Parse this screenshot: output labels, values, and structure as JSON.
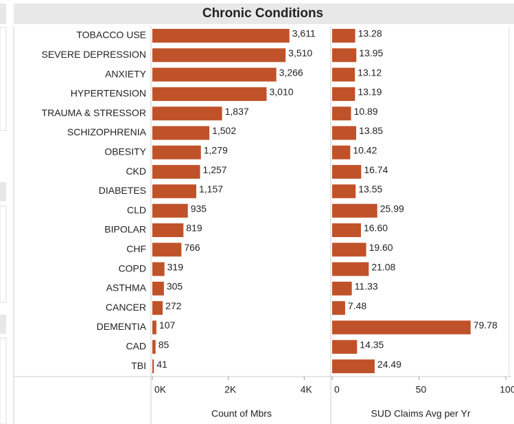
{
  "title": "Chronic Conditions",
  "chart_data": [
    {
      "type": "hbar",
      "color": "#c0522a",
      "categories": [
        "TOBACCO USE",
        "SEVERE DEPRESSION",
        "ANXIETY",
        "HYPERTENSION",
        "TRAUMA & STRESSOR",
        "SCHIZOPHRENIA",
        "OBESITY",
        "CKD",
        "DIABETES",
        "CLD",
        "BIPOLAR",
        "CHF",
        "COPD",
        "ASTHMA",
        "CANCER",
        "DEMENTIA",
        "CAD",
        "TBI"
      ],
      "values": [
        3611,
        3510,
        3266,
        3010,
        1837,
        1502,
        1279,
        1257,
        1157,
        935,
        819,
        766,
        319,
        305,
        272,
        107,
        85,
        41
      ],
      "value_labels": [
        "3,611",
        "3,510",
        "3,266",
        "3,010",
        "1,837",
        "1,502",
        "1,279",
        "1,257",
        "1,157",
        "935",
        "819",
        "766",
        "319",
        "305",
        "272",
        "107",
        "85",
        "41"
      ],
      "xlabel": "Count of Mbrs",
      "xlim": [
        0,
        4700
      ],
      "xticks": [
        {
          "value": 0,
          "label": "0K"
        },
        {
          "value": 2000,
          "label": "2K"
        },
        {
          "value": 4000,
          "label": "4K"
        }
      ]
    },
    {
      "type": "hbar",
      "color": "#c0522a",
      "values": [
        13.28,
        13.95,
        13.12,
        13.19,
        10.89,
        13.85,
        10.42,
        16.74,
        13.55,
        25.99,
        16.6,
        19.6,
        21.08,
        11.33,
        7.48,
        79.78,
        14.35,
        24.49
      ],
      "value_labels": [
        "13.28",
        "13.95",
        "13.12",
        "13.19",
        "10.89",
        "13.85",
        "10.42",
        "16.74",
        "13.55",
        "25.99",
        "16.60",
        "19.60",
        "21.08",
        "11.33",
        "7.48",
        "79.78",
        "14.35",
        "24.49"
      ],
      "xlabel": "SUD Claims Avg per Yr",
      "xlim": [
        0,
        102
      ],
      "xticks": [
        0,
        50,
        100
      ]
    }
  ]
}
